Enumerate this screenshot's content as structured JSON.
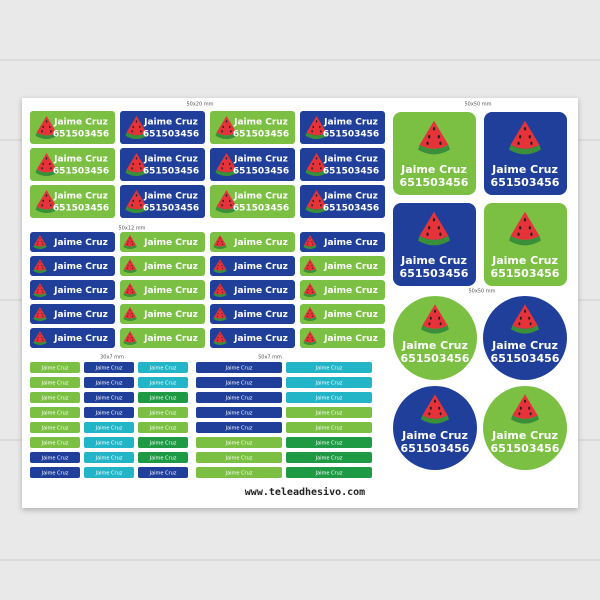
{
  "sheet": {
    "name": "Jaime Cruz",
    "phone": "651503456",
    "sections": {
      "rect_large": {
        "size": "50x20 mm"
      },
      "rect_medium": {
        "size": "50x12 mm"
      },
      "rect_small": {
        "size": "30x7 mm"
      },
      "rect_long": {
        "size": "50x7 mm"
      },
      "squares": {
        "size": "50x50 mm"
      },
      "circles": {
        "size": "50x50 mm"
      }
    },
    "website": "www.teleadhesivo.com"
  }
}
